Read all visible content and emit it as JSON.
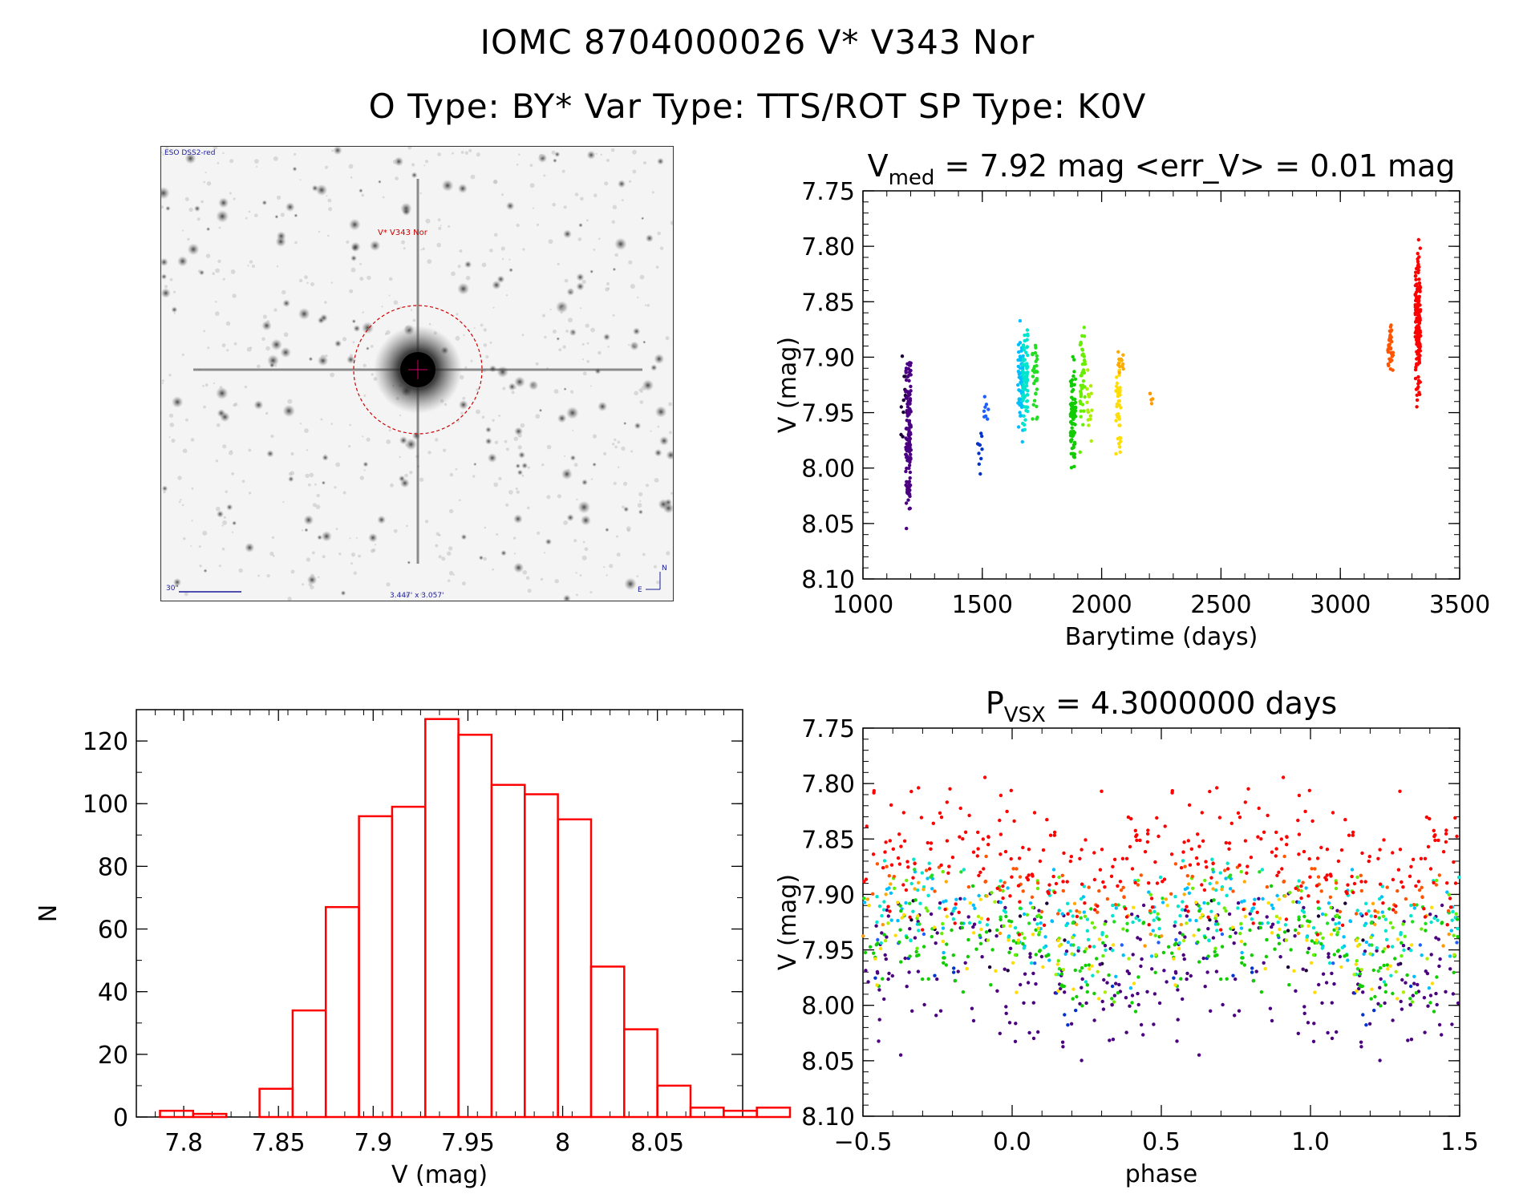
{
  "header": {
    "line1": "IOMC 8704000026    V* V343 Nor",
    "line2": "O Type: BY*  Var Type: TTS/ROT  SP Type: K0V"
  },
  "finder": {
    "survey_label": "ESO DSS2-red",
    "target_label": "V* V343 Nor",
    "scale_label": "30\"",
    "fov_label": "3.447' x 3.057'",
    "compass_n": "N",
    "compass_e": "E",
    "colors": {
      "target": "#cc0000",
      "labels": "#1a1a99"
    }
  },
  "chart_data": [
    {
      "id": "lightcurve",
      "type": "scatter",
      "title_main": "V",
      "title_sub": "med",
      "title_rest": " = 7.92 mag <err_V> = 0.01 mag",
      "xlabel": "Barytime (days)",
      "ylabel": "V (mag)",
      "xlim": [
        1000,
        3500
      ],
      "ylim": [
        8.1,
        7.75
      ],
      "y_inverted": true,
      "xticks": [
        1000,
        1500,
        2000,
        2500,
        3000,
        3500
      ],
      "yticks": [
        7.75,
        7.8,
        7.85,
        7.9,
        7.95,
        8.0,
        8.05,
        8.1
      ],
      "clusters": [
        {
          "x": 1170,
          "y0": 7.88,
          "y1": 8.0,
          "n": 10,
          "color": "#1a0033"
        },
        {
          "x": 1190,
          "y0": 7.86,
          "y1": 8.07,
          "n": 140,
          "color": "#4b0082"
        },
        {
          "x": 1490,
          "y0": 7.94,
          "y1": 8.02,
          "n": 10,
          "color": "#0033cc"
        },
        {
          "x": 1515,
          "y0": 7.92,
          "y1": 7.98,
          "n": 8,
          "color": "#1f5fff"
        },
        {
          "x": 1660,
          "y0": 7.85,
          "y1": 7.99,
          "n": 60,
          "color": "#00bfff"
        },
        {
          "x": 1680,
          "y0": 7.85,
          "y1": 8.0,
          "n": 70,
          "color": "#00e5cc"
        },
        {
          "x": 1720,
          "y0": 7.86,
          "y1": 7.98,
          "n": 30,
          "color": "#22dd22"
        },
        {
          "x": 1880,
          "y0": 7.89,
          "y1": 8.01,
          "n": 90,
          "color": "#11cc00"
        },
        {
          "x": 1920,
          "y0": 7.85,
          "y1": 8.0,
          "n": 40,
          "color": "#66ee00"
        },
        {
          "x": 1950,
          "y0": 7.9,
          "y1": 7.99,
          "n": 15,
          "color": "#aaee00"
        },
        {
          "x": 2070,
          "y0": 7.89,
          "y1": 8.0,
          "n": 40,
          "color": "#ffdd00"
        },
        {
          "x": 2080,
          "y0": 7.89,
          "y1": 7.92,
          "n": 12,
          "color": "#ffaa00"
        },
        {
          "x": 2210,
          "y0": 7.93,
          "y1": 7.95,
          "n": 5,
          "color": "#ff9900"
        },
        {
          "x": 3210,
          "y0": 7.86,
          "y1": 7.92,
          "n": 40,
          "color": "#ff5500"
        },
        {
          "x": 3325,
          "y0": 7.78,
          "y1": 7.96,
          "n": 160,
          "color": "#ff0000"
        }
      ]
    },
    {
      "id": "histogram",
      "type": "bar",
      "xlabel": "V (mag)",
      "ylabel": "N",
      "xlim": [
        7.775,
        8.095
      ],
      "ylim": [
        0,
        130
      ],
      "xticks": [
        7.8,
        7.85,
        7.9,
        7.95,
        8.0,
        8.05
      ],
      "yticks": [
        0,
        20,
        40,
        60,
        80,
        100,
        120
      ],
      "bin_width": 0.0175,
      "bin_start": 7.7875,
      "values": [
        2,
        1,
        0,
        9,
        34,
        67,
        96,
        99,
        127,
        122,
        106,
        103,
        95,
        48,
        28,
        10,
        3,
        2,
        3
      ],
      "color": "#ff0000"
    },
    {
      "id": "phase",
      "type": "scatter",
      "title_main": "P",
      "title_sub": "VSX",
      "title_rest": " = 4.3000000 days",
      "xlabel": "phase",
      "ylabel": "V (mag)",
      "xlim": [
        -0.5,
        1.5
      ],
      "ylim": [
        8.1,
        7.75
      ],
      "y_inverted": true,
      "xticks": [
        -0.5,
        0.0,
        0.5,
        1.0,
        1.5
      ],
      "xtick_labels": [
        "−0.5",
        "0.0",
        "0.5",
        "1.0",
        "1.5"
      ],
      "yticks": [
        7.75,
        7.8,
        7.85,
        7.9,
        7.95,
        8.0,
        8.05,
        8.1
      ],
      "period_days": 4.3
    }
  ]
}
